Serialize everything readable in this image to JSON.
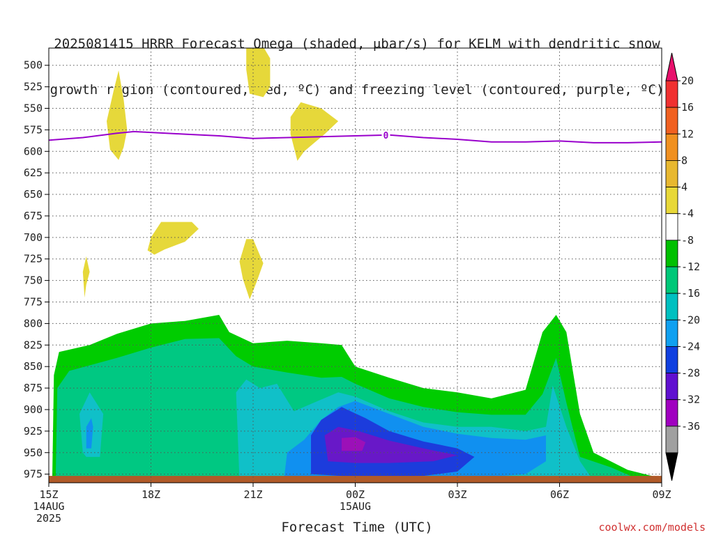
{
  "title_line1": "2025081415 HRRR Forecast Omega (shaded, μbar/s) for KELM with dendritic snow",
  "title_line2": "growth region (contoured, red, ºC) and freezing level (contoured, purple, ºC)",
  "credit": "coolwx.com/models",
  "chart_data": {
    "type": "heatmap",
    "title": "2025081415 HRRR Forecast Omega (shaded, μbar/s) for KELM with dendritic snow growth region (contoured, red, ºC) and freezing level (contoured, purple, ºC)",
    "xlabel": "Forecast Time (UTC)",
    "ylabel": "",
    "x_ticks": [
      {
        "h": 0,
        "label": "15Z",
        "sub1": "14AUG",
        "sub2": "2025"
      },
      {
        "h": 3,
        "label": "18Z",
        "sub1": "",
        "sub2": ""
      },
      {
        "h": 6,
        "label": "21Z",
        "sub1": "",
        "sub2": ""
      },
      {
        "h": 9,
        "label": "00Z",
        "sub1": "15AUG",
        "sub2": ""
      },
      {
        "h": 12,
        "label": "03Z",
        "sub1": "",
        "sub2": ""
      },
      {
        "h": 15,
        "label": "06Z",
        "sub1": "",
        "sub2": ""
      },
      {
        "h": 18,
        "label": "09Z",
        "sub1": "",
        "sub2": ""
      }
    ],
    "y_ticks": [
      500,
      525,
      550,
      575,
      600,
      625,
      650,
      675,
      700,
      725,
      750,
      775,
      800,
      825,
      850,
      875,
      900,
      925,
      950,
      975
    ],
    "ylim_hPa": [
      480,
      985
    ],
    "xlim_hours": [
      0,
      18
    ],
    "grid": true,
    "colorbar": {
      "labels": [
        "20",
        "16",
        "12",
        "8",
        "4",
        "-4",
        "-8",
        "-12",
        "-16",
        "-20",
        "-24",
        "-28",
        "-32",
        "-36"
      ],
      "colors": [
        "#e8106c",
        "#f03030",
        "#f06020",
        "#f09020",
        "#e8b830",
        "#e8d838",
        "#ffffff",
        "#00c000",
        "#00c878",
        "#00c0c0",
        "#10a0f0",
        "#1040e0",
        "#6010d0",
        "#a000c0",
        "#a0a0a0",
        "#000000"
      ]
    },
    "omega_regions": [
      {
        "level": "-4",
        "color": "#00cc00",
        "points": [
          [
            0.1,
            983
          ],
          [
            0.15,
            860
          ],
          [
            0.3,
            833
          ],
          [
            1.2,
            825
          ],
          [
            2,
            812
          ],
          [
            3,
            800
          ],
          [
            4,
            797
          ],
          [
            5,
            790
          ],
          [
            5.3,
            810
          ],
          [
            6,
            823
          ],
          [
            7,
            820
          ],
          [
            8,
            823
          ],
          [
            8.6,
            825
          ],
          [
            9,
            850
          ],
          [
            10,
            863
          ],
          [
            11,
            875
          ],
          [
            12,
            880
          ],
          [
            13,
            887
          ],
          [
            14,
            877
          ],
          [
            14.5,
            810
          ],
          [
            14.9,
            790
          ],
          [
            15.2,
            810
          ],
          [
            15.6,
            905
          ],
          [
            16,
            950
          ],
          [
            17,
            970
          ],
          [
            18,
            980
          ],
          [
            18,
            985
          ]
        ]
      },
      {
        "level": "-8",
        "color": "#00c882",
        "points": [
          [
            0.2,
            983
          ],
          [
            0.25,
            875
          ],
          [
            0.6,
            855
          ],
          [
            2,
            840
          ],
          [
            3,
            828
          ],
          [
            4,
            818
          ],
          [
            5,
            817
          ],
          [
            5.5,
            838
          ],
          [
            6,
            850
          ],
          [
            7,
            857
          ],
          [
            8,
            863
          ],
          [
            8.6,
            862
          ],
          [
            9,
            870
          ],
          [
            10,
            887
          ],
          [
            11,
            897
          ],
          [
            12,
            903
          ],
          [
            13,
            906
          ],
          [
            14,
            906
          ],
          [
            14.5,
            882
          ],
          [
            14.9,
            840
          ],
          [
            15.2,
            892
          ],
          [
            15.6,
            955
          ],
          [
            16.5,
            967
          ],
          [
            17.5,
            984
          ]
        ]
      },
      {
        "level": "-12",
        "color": "#10c0c8",
        "points": [
          [
            1,
            950
          ],
          [
            0.9,
            905
          ],
          [
            1.2,
            880
          ],
          [
            1.6,
            905
          ],
          [
            1.5,
            955
          ],
          [
            1.1,
            955
          ]
        ]
      },
      {
        "level": "-12",
        "color": "#10c0c8",
        "points": [
          [
            5.6,
            983
          ],
          [
            5.5,
            880
          ],
          [
            5.8,
            865
          ],
          [
            6.2,
            875
          ],
          [
            6.7,
            870
          ],
          [
            7.2,
            902
          ],
          [
            7.9,
            890
          ],
          [
            8.5,
            880
          ],
          [
            9,
            885
          ],
          [
            10,
            902
          ],
          [
            11,
            915
          ],
          [
            12,
            920
          ],
          [
            13,
            920
          ],
          [
            14,
            925
          ],
          [
            14.6,
            920
          ],
          [
            14.8,
            872
          ],
          [
            15.2,
            920
          ],
          [
            15.6,
            960
          ],
          [
            16,
            983
          ]
        ]
      },
      {
        "level": "-16",
        "color": "#1090f0",
        "points": [
          [
            1.1,
            945
          ],
          [
            1.1,
            920
          ],
          [
            1.25,
            910
          ],
          [
            1.3,
            920
          ],
          [
            1.25,
            945
          ]
        ]
      },
      {
        "level": "-16",
        "color": "#1090f0",
        "points": [
          [
            6.9,
            983
          ],
          [
            7,
            950
          ],
          [
            7.5,
            935
          ],
          [
            8,
            912
          ],
          [
            8.5,
            897
          ],
          [
            9,
            890
          ],
          [
            10,
            905
          ],
          [
            11,
            920
          ],
          [
            12,
            928
          ],
          [
            13,
            933
          ],
          [
            14,
            935
          ],
          [
            14.6,
            930
          ],
          [
            14.6,
            960
          ],
          [
            14,
            975
          ],
          [
            13,
            978
          ],
          [
            11,
            980
          ],
          [
            9,
            983
          ]
        ]
      },
      {
        "level": "-20",
        "color": "#1c3cdc",
        "points": [
          [
            7.7,
            975
          ],
          [
            7.7,
            930
          ],
          [
            8,
            912
          ],
          [
            8.6,
            897
          ],
          [
            9.3,
            910
          ],
          [
            10,
            925
          ],
          [
            11,
            937
          ],
          [
            12,
            945
          ],
          [
            12.5,
            955
          ],
          [
            12,
            972
          ],
          [
            11,
            977
          ],
          [
            10,
            978
          ],
          [
            9,
            978
          ]
        ]
      },
      {
        "level": "-24",
        "color": "#6818c8",
        "points": [
          [
            8.2,
            960
          ],
          [
            8.1,
            930
          ],
          [
            8.5,
            920
          ],
          [
            9.1,
            925
          ],
          [
            10,
            936
          ],
          [
            11,
            945
          ],
          [
            12,
            953
          ],
          [
            11.3,
            960
          ],
          [
            10,
            962
          ],
          [
            9,
            962
          ]
        ]
      },
      {
        "level": "-28",
        "color": "#9c10b8",
        "points": [
          [
            8.6,
            948
          ],
          [
            8.6,
            933
          ],
          [
            9,
            932
          ],
          [
            9.3,
            938
          ],
          [
            9.2,
            948
          ]
        ]
      },
      {
        "level": "4",
        "color": "#e6d83a",
        "points": [
          [
            1.8,
            598
          ],
          [
            1.7,
            565
          ],
          [
            1.9,
            530
          ],
          [
            2.05,
            506
          ],
          [
            2.2,
            540
          ],
          [
            2.3,
            575
          ],
          [
            2.2,
            595
          ],
          [
            2.05,
            610
          ]
        ]
      },
      {
        "level": "4",
        "color": "#e6d83a",
        "points": [
          [
            5.8,
            472
          ],
          [
            6.2,
            472
          ],
          [
            6.5,
            492
          ],
          [
            6.5,
            525
          ],
          [
            6.3,
            537
          ],
          [
            5.9,
            533
          ],
          [
            5.8,
            505
          ]
        ]
      },
      {
        "level": "4",
        "color": "#e6d83a",
        "points": [
          [
            7.1,
            560
          ],
          [
            7.4,
            543
          ],
          [
            8,
            550
          ],
          [
            8.5,
            565
          ],
          [
            8.1,
            580
          ],
          [
            7.8,
            590
          ],
          [
            7.5,
            600
          ],
          [
            7.3,
            611
          ],
          [
            7.1,
            580
          ]
        ]
      },
      {
        "level": "4",
        "color": "#e6d83a",
        "points": [
          [
            3,
            700
          ],
          [
            3.3,
            682
          ],
          [
            4.2,
            682
          ],
          [
            4.4,
            690
          ],
          [
            4,
            705
          ],
          [
            3.4,
            714
          ],
          [
            3.1,
            720
          ],
          [
            2.9,
            715
          ]
        ]
      },
      {
        "level": "4",
        "color": "#e6d83a",
        "points": [
          [
            1,
            740
          ],
          [
            1.1,
            722
          ],
          [
            1.2,
            740
          ],
          [
            1.1,
            755
          ],
          [
            1.05,
            770
          ]
        ]
      },
      {
        "level": "4",
        "color": "#e6d83a",
        "points": [
          [
            5.6,
            728
          ],
          [
            5.8,
            702
          ],
          [
            6,
            702
          ],
          [
            6.3,
            730
          ],
          [
            6.1,
            752
          ],
          [
            5.9,
            772
          ],
          [
            5.7,
            748
          ]
        ]
      }
    ],
    "freezing_level": {
      "label": "0",
      "color": "#9900cc",
      "points": [
        [
          0,
          587
        ],
        [
          1,
          584
        ],
        [
          2,
          579
        ],
        [
          2.5,
          577
        ],
        [
          3,
          578
        ],
        [
          4,
          580
        ],
        [
          5,
          582
        ],
        [
          6,
          585
        ],
        [
          7,
          584
        ],
        [
          8,
          583
        ],
        [
          9,
          582
        ],
        [
          10,
          581
        ],
        [
          11,
          584
        ],
        [
          12,
          586
        ],
        [
          13,
          589
        ],
        [
          14,
          589
        ],
        [
          15,
          588
        ],
        [
          16,
          590
        ],
        [
          17,
          590
        ],
        [
          18,
          589
        ]
      ],
      "label_at_h": 9.9
    },
    "ground": {
      "color": "#b05a28",
      "top_hPa": 977
    }
  }
}
